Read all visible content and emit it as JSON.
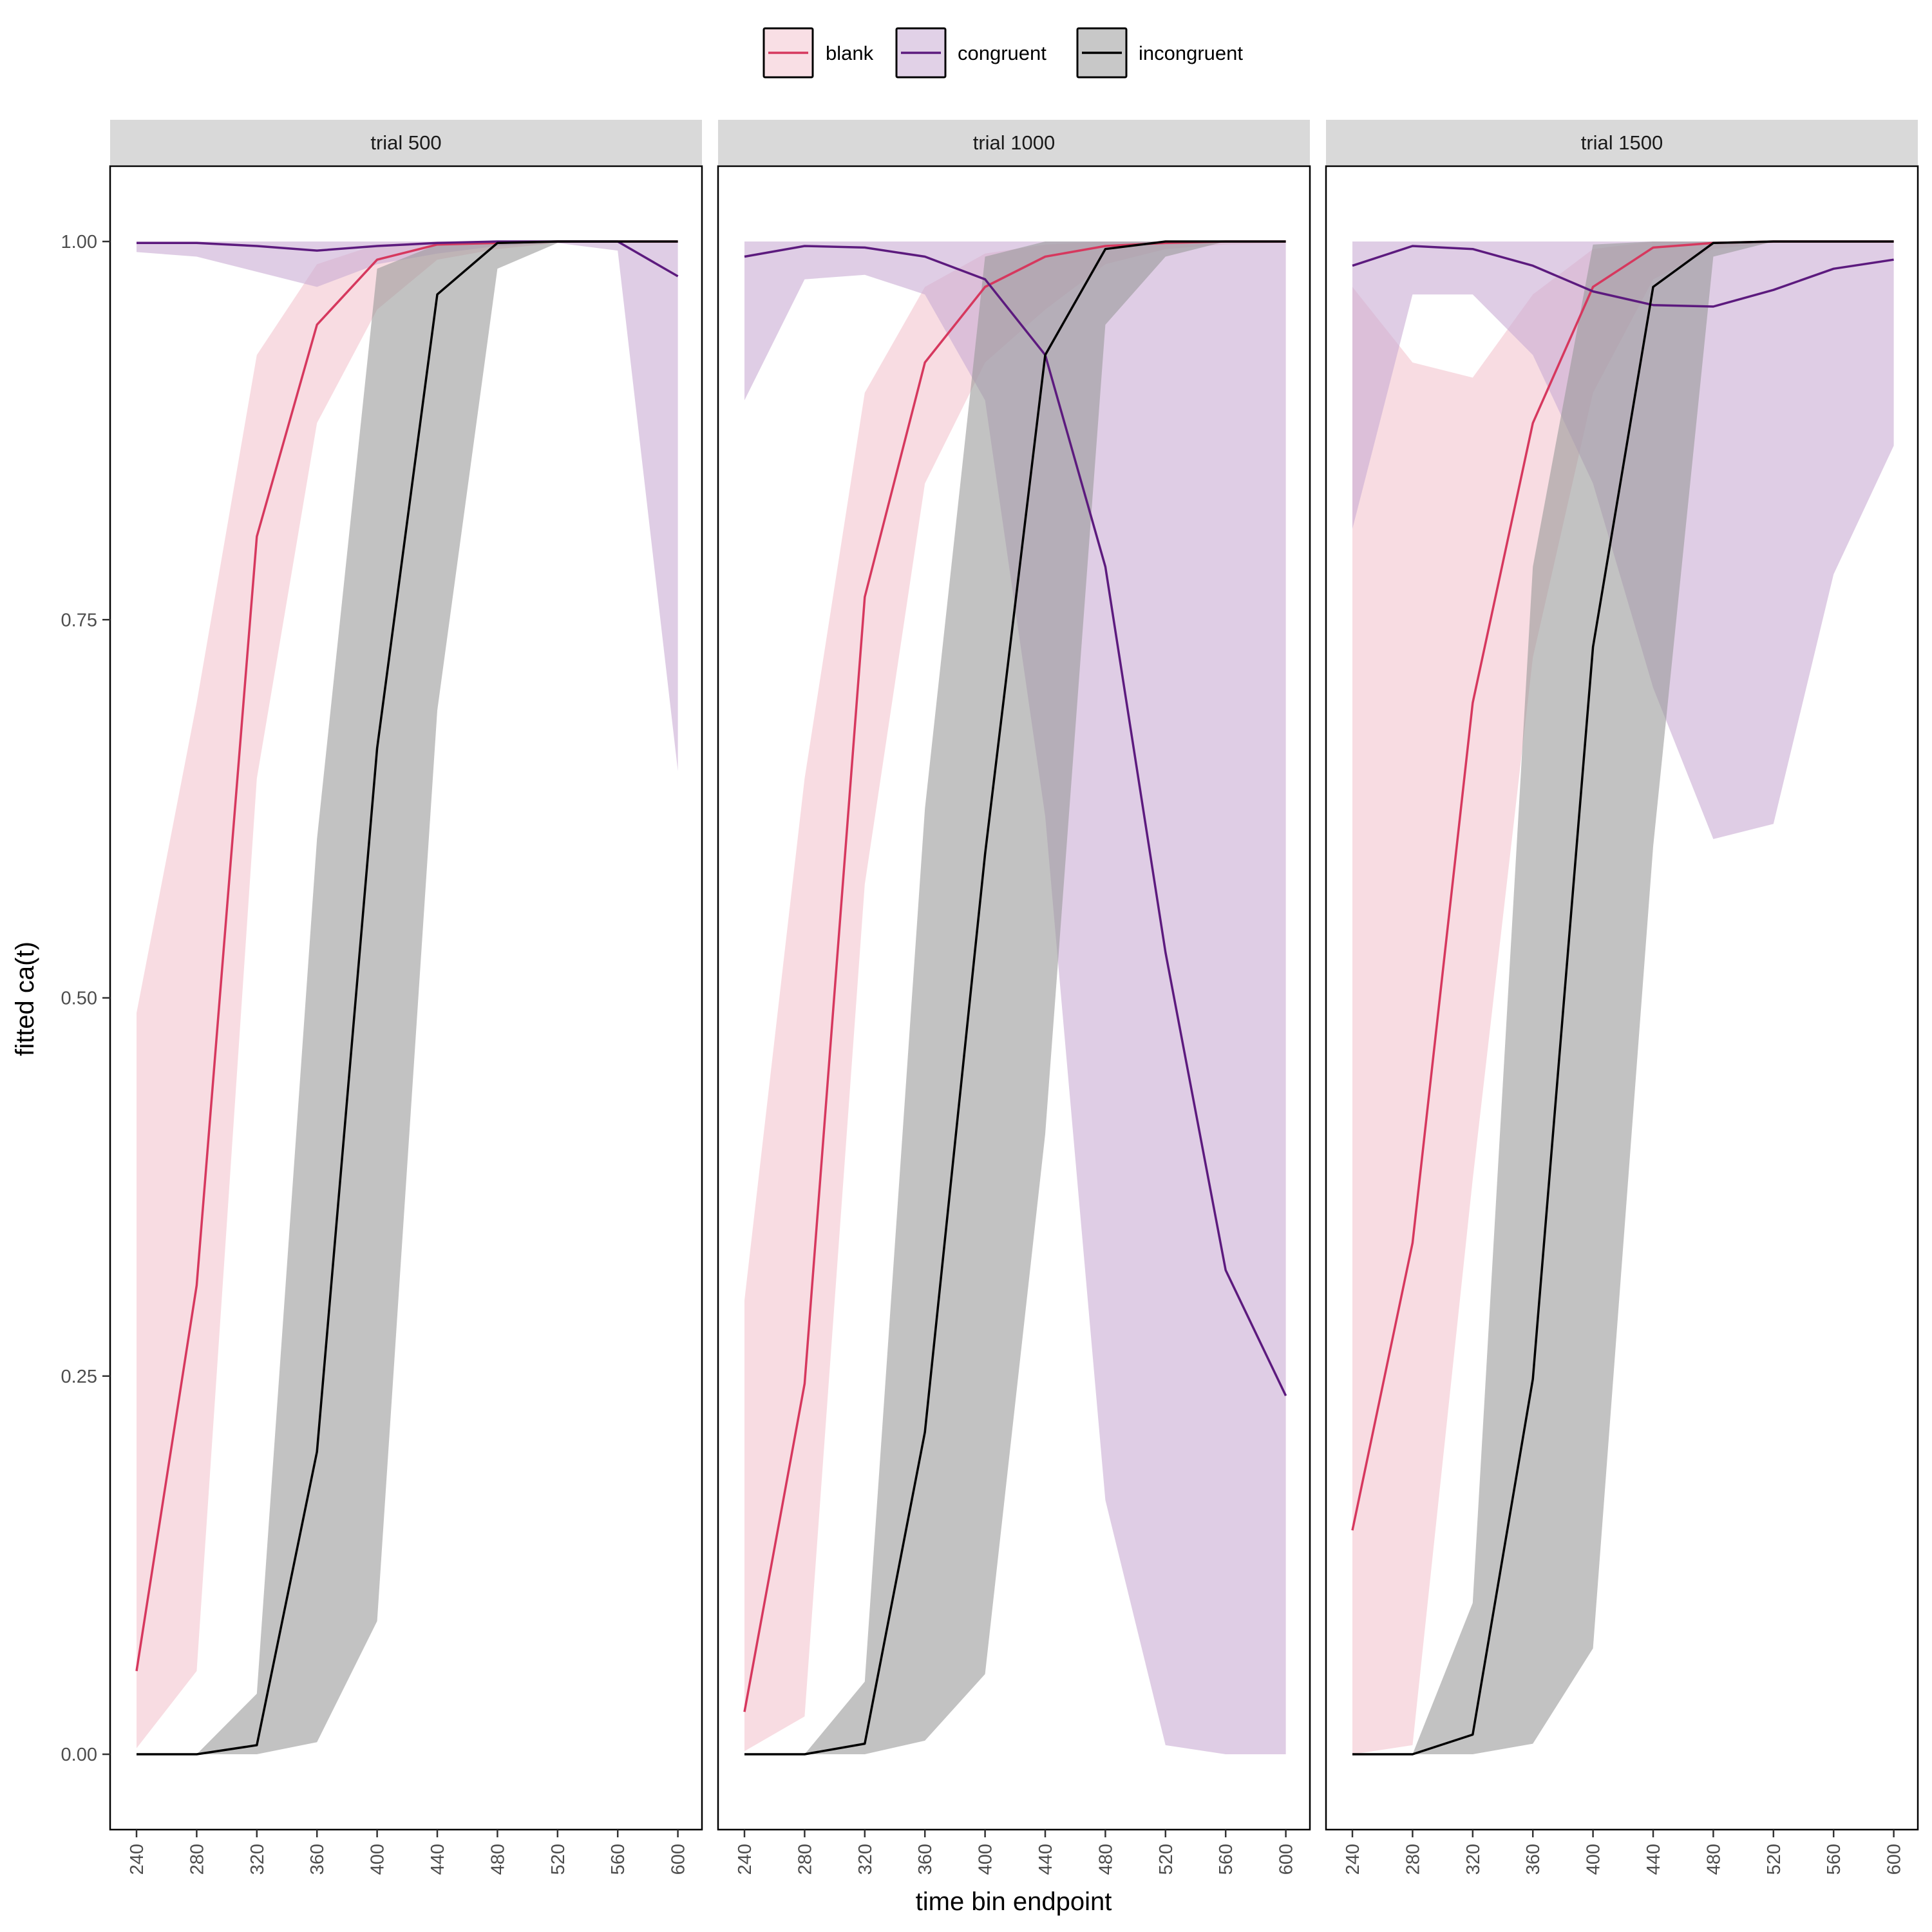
{
  "chart_data": {
    "type": "line",
    "xlabel": "time bin endpoint",
    "ylabel": "fitted ca(t)",
    "x": [
      240,
      280,
      320,
      360,
      400,
      440,
      480,
      520,
      560,
      600
    ],
    "x_tick_labels": [
      "240",
      "280",
      "320",
      "360",
      "400",
      "440",
      "480",
      "520",
      "560",
      "600"
    ],
    "ylim": [
      -0.05,
      1.05
    ],
    "y_ticks": [
      0,
      0.25,
      0.5,
      0.75,
      1
    ],
    "y_tick_labels": [
      "0.00",
      "0.25",
      "0.50",
      "0.75",
      "1.00"
    ],
    "grid": false,
    "legend": {
      "position": "top",
      "items": [
        {
          "name": "blank",
          "color": "#d6385e",
          "fill": "#f4c4cf"
        },
        {
          "name": "congruent",
          "color": "#5c1a7e",
          "fill": "#c9abd3"
        },
        {
          "name": "incongruent",
          "color": "#000000",
          "fill": "#9a9a9a"
        }
      ]
    },
    "panels": [
      {
        "title": "trial 500",
        "series": [
          {
            "name": "blank",
            "values": [
              0.055,
              0.31,
              0.805,
              0.945,
              0.988,
              0.998,
              0.999,
              1.0,
              1.0,
              1.0
            ],
            "lower": [
              0.004,
              0.055,
              0.645,
              0.88,
              0.955,
              0.988,
              0.995,
              0.999,
              0.999,
              0.999
            ],
            "upper": [
              0.49,
              0.695,
              0.925,
              0.985,
              0.998,
              1.0,
              1.0,
              1.0,
              1.0,
              1.0
            ]
          },
          {
            "name": "congruent",
            "values": [
              0.999,
              0.999,
              0.997,
              0.994,
              0.997,
              0.999,
              1.0,
              1.0,
              1.0,
              0.977
            ],
            "lower": [
              0.993,
              0.99,
              0.98,
              0.97,
              0.985,
              0.992,
              0.997,
              0.999,
              0.994,
              0.65
            ],
            "upper": [
              1.0,
              1.0,
              1.0,
              1.0,
              1.0,
              1.0,
              1.0,
              1.0,
              1.0,
              1.0
            ]
          },
          {
            "name": "incongruent",
            "values": [
              0.0,
              0.0,
              0.006,
              0.2,
              0.665,
              0.965,
              0.999,
              1.0,
              1.0,
              1.0
            ],
            "lower": [
              0.0,
              0.0,
              0.0,
              0.008,
              0.088,
              0.69,
              0.982,
              0.999,
              1.0,
              1.0
            ],
            "upper": [
              0.0,
              0.0,
              0.04,
              0.605,
              0.982,
              0.998,
              1.0,
              1.0,
              1.0,
              1.0
            ]
          }
        ]
      },
      {
        "title": "trial 1000",
        "series": [
          {
            "name": "blank",
            "values": [
              0.028,
              0.245,
              0.765,
              0.92,
              0.97,
              0.99,
              0.997,
              0.999,
              1.0,
              1.0
            ],
            "lower": [
              0.002,
              0.025,
              0.575,
              0.84,
              0.92,
              0.955,
              0.985,
              0.995,
              0.998,
              0.999
            ],
            "upper": [
              0.3,
              0.645,
              0.9,
              0.97,
              0.992,
              0.998,
              1.0,
              1.0,
              1.0,
              1.0
            ]
          },
          {
            "name": "congruent",
            "values": [
              0.99,
              0.997,
              0.996,
              0.99,
              0.975,
              0.925,
              0.785,
              0.53,
              0.32,
              0.237
            ],
            "lower": [
              0.895,
              0.975,
              0.978,
              0.965,
              0.895,
              0.62,
              0.168,
              0.006,
              0.0,
              0.0
            ],
            "upper": [
              1.0,
              1.0,
              1.0,
              1.0,
              1.0,
              1.0,
              1.0,
              1.0,
              1.0,
              1.0
            ]
          },
          {
            "name": "incongruent",
            "values": [
              0.0,
              0.0,
              0.007,
              0.213,
              0.595,
              0.925,
              0.995,
              1.0,
              1.0,
              1.0
            ],
            "lower": [
              0.0,
              0.0,
              0.0,
              0.009,
              0.053,
              0.41,
              0.945,
              0.99,
              1.0,
              1.0
            ],
            "upper": [
              0.0,
              0.0,
              0.048,
              0.625,
              0.99,
              1.0,
              1.0,
              1.0,
              1.0,
              1.0
            ]
          }
        ]
      },
      {
        "title": "trial 1500",
        "series": [
          {
            "name": "blank",
            "values": [
              0.148,
              0.338,
              0.695,
              0.88,
              0.97,
              0.996,
              0.999,
              1.0,
              1.0,
              1.0
            ],
            "lower": [
              0.0,
              0.006,
              0.38,
              0.725,
              0.9,
              0.975,
              0.995,
              0.999,
              1.0,
              1.0
            ],
            "upper": [
              0.97,
              0.92,
              0.91,
              0.965,
              0.995,
              1.0,
              1.0,
              1.0,
              1.0,
              1.0
            ]
          },
          {
            "name": "congruent",
            "values": [
              0.984,
              0.997,
              0.995,
              0.984,
              0.967,
              0.958,
              0.957,
              0.968,
              0.982,
              0.988
            ],
            "lower": [
              0.81,
              0.965,
              0.965,
              0.925,
              0.84,
              0.705,
              0.605,
              0.615,
              0.78,
              0.865
            ],
            "upper": [
              1.0,
              1.0,
              1.0,
              1.0,
              1.0,
              1.0,
              1.0,
              1.0,
              1.0,
              1.0
            ]
          },
          {
            "name": "incongruent",
            "values": [
              0.0,
              0.0,
              0.013,
              0.248,
              0.732,
              0.97,
              0.999,
              1.0,
              1.0,
              1.0
            ],
            "lower": [
              0.0,
              0.0,
              0.0,
              0.007,
              0.07,
              0.6,
              0.99,
              1.0,
              1.0,
              1.0
            ],
            "upper": [
              0.0,
              0.0,
              0.1,
              0.785,
              0.998,
              1.0,
              1.0,
              1.0,
              1.0,
              1.0
            ]
          }
        ]
      }
    ]
  }
}
